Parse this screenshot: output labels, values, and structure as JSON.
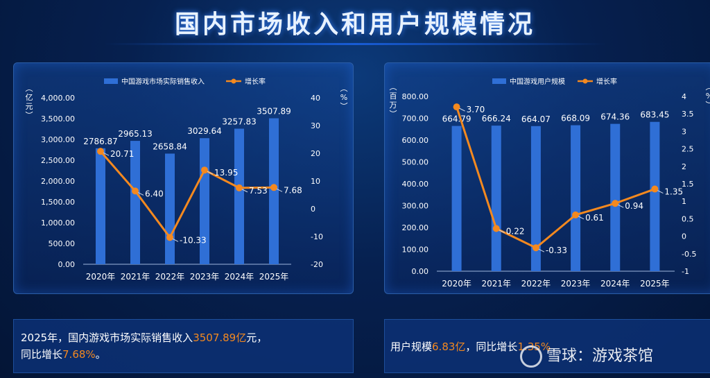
{
  "page_title": "国内市场收入和用户规模情况",
  "summary_left": {
    "line1_prefix": "2025年，国内游戏市场实际销售收入",
    "line1_value": "3507.89亿",
    "line1_suffix": "元，",
    "line2_prefix": "同比增长",
    "line2_value": "7.68%",
    "line2_suffix": "。"
  },
  "summary_right": {
    "prefix": "用户规模",
    "value": "6.83亿",
    "middle": "，同比增长",
    "value2": "1.35%"
  },
  "watermark": "雪球：游戏茶馆",
  "colors": {
    "bar": "#2f6fd6",
    "line": "#f4891f",
    "axis_text": "#ffffff"
  },
  "chart_data": [
    {
      "type": "bar",
      "legend": [
        "中国游戏市场实际销售收入",
        "增长率"
      ],
      "categories": [
        "2020年",
        "2021年",
        "2022年",
        "2023年",
        "2024年",
        "2025年"
      ],
      "series": [
        {
          "name": "中国游戏市场实际销售收入",
          "type": "bar",
          "axis": "left",
          "values": [
            2786.87,
            2965.13,
            2658.84,
            3029.64,
            3257.83,
            3507.89
          ],
          "labels": [
            "2786.87",
            "2965.13",
            "2658.84",
            "3029.64",
            "3257.83",
            "3507.89"
          ]
        },
        {
          "name": "增长率",
          "type": "line",
          "axis": "right",
          "values": [
            20.71,
            6.4,
            -10.33,
            13.95,
            7.53,
            7.68
          ],
          "labels": [
            "20.71",
            "6.40",
            "-10.33",
            "13.95",
            "7.53",
            "7.68"
          ]
        }
      ],
      "ylabel_left": "（亿元）",
      "ylabel_right": "（%）",
      "ylim_left": [
        0,
        4000
      ],
      "yticks_left": [
        "0.00",
        "500.00",
        "1,000.00",
        "1,500.00",
        "2,000.00",
        "2,500.00",
        "3,000.00",
        "3,500.00",
        "4,000.00"
      ],
      "ylim_right": [
        -20,
        40
      ],
      "yticks_right": [
        "-20",
        "-10",
        "0",
        "10",
        "20",
        "30",
        "40"
      ],
      "legend_position": "top"
    },
    {
      "type": "bar",
      "legend": [
        "中国游戏用户规模",
        "增长率"
      ],
      "categories": [
        "2020年",
        "2021年",
        "2022年",
        "2023年",
        "2024年",
        "2025年"
      ],
      "series": [
        {
          "name": "中国游戏用户规模",
          "type": "bar",
          "axis": "left",
          "values": [
            664.79,
            666.24,
            664.07,
            668.09,
            674.36,
            683.45
          ],
          "labels": [
            "664.79",
            "666.24",
            "664.07",
            "668.09",
            "674.36",
            "683.45"
          ]
        },
        {
          "name": "增长率",
          "type": "line",
          "axis": "right",
          "values": [
            3.7,
            0.22,
            -0.33,
            0.61,
            0.94,
            1.35
          ],
          "labels": [
            "3.70",
            "0.22",
            "-0.33",
            "0.61",
            "0.94",
            "1.35"
          ]
        }
      ],
      "ylabel_left": "（百万）",
      "ylabel_right": "（%）",
      "ylim_left": [
        0,
        800
      ],
      "yticks_left": [
        "0.00",
        "100.00",
        "200.00",
        "300.00",
        "400.00",
        "500.00",
        "600.00",
        "700.00",
        "800.00"
      ],
      "ylim_right": [
        -1,
        4
      ],
      "yticks_right": [
        "-1",
        "-0.5",
        "0",
        "0.5",
        "1",
        "1.5",
        "2",
        "2.5",
        "3",
        "3.5",
        "4"
      ],
      "legend_position": "top"
    }
  ]
}
